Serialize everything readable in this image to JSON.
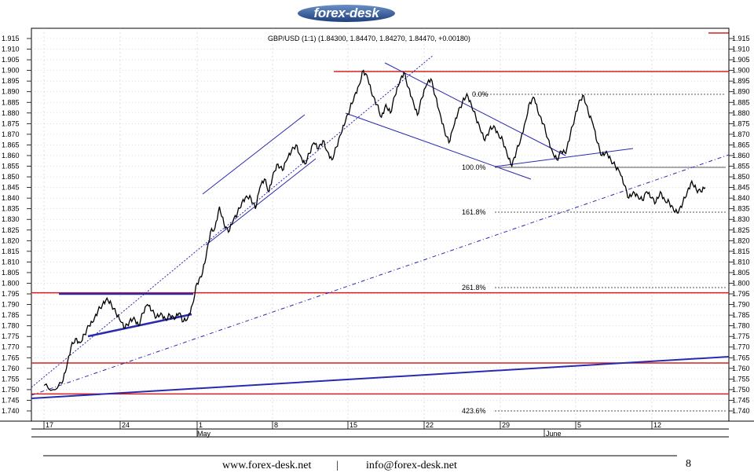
{
  "header": {
    "logo_text": "forex-desk"
  },
  "chart_data": {
    "type": "line",
    "title": "GBP/USD (1:1) (1.84300, 1.84470, 1.84270, 1.84470, +0.00180)",
    "ylim": [
      1.74,
      1.915
    ],
    "y_ticks": [
      "1.915",
      "1.910",
      "1.905",
      "1.900",
      "1.895",
      "1.890",
      "1.885",
      "1.880",
      "1.875",
      "1.870",
      "1.865",
      "1.860",
      "1.855",
      "1.850",
      "1.845",
      "1.840",
      "1.835",
      "1.830",
      "1.825",
      "1.820",
      "1.815",
      "1.810",
      "1.805",
      "1.800",
      "1.795",
      "1.790",
      "1.785",
      "1.780",
      "1.775",
      "1.770",
      "1.765",
      "1.760",
      "1.755",
      "1.750",
      "1.745",
      "1.740"
    ],
    "x_ticks": [
      "17",
      "24",
      "1",
      "8",
      "15",
      "22",
      "29",
      "5",
      "12"
    ],
    "month_labels": [
      "May",
      "June"
    ],
    "grid": true,
    "series": [
      {
        "values": [
          [
            0,
            1.752
          ],
          [
            2,
            1.75
          ],
          [
            4,
            1.753
          ],
          [
            5,
            1.76
          ],
          [
            6,
            1.77
          ],
          [
            7,
            1.774
          ],
          [
            8,
            1.772
          ],
          [
            9,
            1.776
          ],
          [
            10,
            1.78
          ],
          [
            11,
            1.782
          ],
          [
            12,
            1.787
          ],
          [
            13,
            1.79
          ],
          [
            14,
            1.793
          ],
          [
            15,
            1.79
          ],
          [
            16,
            1.786
          ],
          [
            17,
            1.782
          ],
          [
            18,
            1.779
          ],
          [
            19,
            1.782
          ],
          [
            20,
            1.784
          ],
          [
            21,
            1.78
          ],
          [
            22,
            1.786
          ],
          [
            23,
            1.79
          ],
          [
            24,
            1.787
          ],
          [
            25,
            1.784
          ],
          [
            26,
            1.786
          ],
          [
            27,
            1.783
          ],
          [
            28,
            1.785
          ],
          [
            29,
            1.783
          ],
          [
            30,
            1.786
          ],
          [
            31,
            1.782
          ],
          [
            32,
            1.784
          ],
          [
            33,
            1.79
          ],
          [
            34,
            1.8
          ],
          [
            35,
            1.803
          ],
          [
            36,
            1.812
          ],
          [
            37,
            1.824
          ],
          [
            38,
            1.826
          ],
          [
            39,
            1.836
          ],
          [
            40,
            1.828
          ],
          [
            41,
            1.824
          ],
          [
            42,
            1.829
          ],
          [
            43,
            1.833
          ],
          [
            44,
            1.838
          ],
          [
            45,
            1.841
          ],
          [
            46,
            1.84
          ],
          [
            47,
            1.835
          ],
          [
            48,
            1.845
          ],
          [
            49,
            1.849
          ],
          [
            50,
            1.843
          ],
          [
            51,
            1.852
          ],
          [
            52,
            1.856
          ],
          [
            53,
            1.853
          ],
          [
            54,
            1.858
          ],
          [
            55,
            1.862
          ],
          [
            56,
            1.865
          ],
          [
            57,
            1.86
          ],
          [
            58,
            1.856
          ],
          [
            59,
            1.861
          ],
          [
            60,
            1.866
          ],
          [
            61,
            1.863
          ],
          [
            62,
            1.867
          ],
          [
            63,
            1.862
          ],
          [
            64,
            1.858
          ],
          [
            65,
            1.864
          ],
          [
            66,
            1.87
          ],
          [
            67,
            1.876
          ],
          [
            68,
            1.882
          ],
          [
            69,
            1.888
          ],
          [
            70,
            1.893
          ],
          [
            71,
            1.9
          ],
          [
            72,
            1.896
          ],
          [
            73,
            1.888
          ],
          [
            74,
            1.884
          ],
          [
            75,
            1.878
          ],
          [
            76,
            1.884
          ],
          [
            77,
            1.88
          ],
          [
            78,
            1.888
          ],
          [
            79,
            1.894
          ],
          [
            80,
            1.899
          ],
          [
            81,
            1.892
          ],
          [
            82,
            1.886
          ],
          [
            83,
            1.879
          ],
          [
            84,
            1.887
          ],
          [
            85,
            1.893
          ],
          [
            86,
            1.896
          ],
          [
            87,
            1.888
          ],
          [
            88,
            1.88
          ],
          [
            89,
            1.872
          ],
          [
            90,
            1.866
          ],
          [
            91,
            1.873
          ],
          [
            92,
            1.88
          ],
          [
            93,
            1.885
          ],
          [
            94,
            1.889
          ],
          [
            95,
            1.884
          ],
          [
            96,
            1.878
          ],
          [
            97,
            1.872
          ],
          [
            98,
            1.867
          ],
          [
            99,
            1.872
          ],
          [
            100,
            1.874
          ],
          [
            101,
            1.87
          ],
          [
            102,
            1.867
          ],
          [
            103,
            1.86
          ],
          [
            104,
            1.855
          ],
          [
            105,
            1.862
          ],
          [
            106,
            1.868
          ],
          [
            107,
            1.876
          ],
          [
            108,
            1.885
          ],
          [
            109,
            1.887
          ],
          [
            110,
            1.879
          ],
          [
            111,
            1.875
          ],
          [
            112,
            1.868
          ],
          [
            113,
            1.862
          ],
          [
            114,
            1.858
          ],
          [
            115,
            1.862
          ],
          [
            116,
            1.861
          ],
          [
            117,
            1.87
          ],
          [
            118,
            1.878
          ],
          [
            119,
            1.886
          ],
          [
            120,
            1.888
          ],
          [
            121,
            1.88
          ],
          [
            122,
            1.875
          ],
          [
            123,
            1.866
          ],
          [
            124,
            1.86
          ],
          [
            125,
            1.862
          ],
          [
            126,
            1.858
          ],
          [
            127,
            1.855
          ],
          [
            128,
            1.852
          ],
          [
            129,
            1.846
          ],
          [
            130,
            1.84
          ],
          [
            131,
            1.843
          ],
          [
            132,
            1.841
          ],
          [
            133,
            1.839
          ],
          [
            134,
            1.843
          ],
          [
            135,
            1.84
          ],
          [
            136,
            1.838
          ],
          [
            137,
            1.843
          ],
          [
            138,
            1.839
          ],
          [
            139,
            1.838
          ],
          [
            140,
            1.834
          ],
          [
            141,
            1.833
          ],
          [
            142,
            1.838
          ],
          [
            143,
            1.843
          ],
          [
            144,
            1.848
          ],
          [
            145,
            1.844
          ],
          [
            146,
            1.843
          ],
          [
            147,
            1.845
          ]
        ]
      }
    ],
    "fibonacci_levels": [
      "0.0%",
      "100.0%",
      "161.8%",
      "261.8%",
      "423.6%"
    ],
    "horizontal_levels": [
      1.8995,
      1.7955,
      1.7625,
      1.748
    ]
  },
  "footer": {
    "website": "www.forex-desk.net",
    "separator": "|",
    "email": "info@forex-desk.net",
    "page_number": "8"
  },
  "colors": {
    "logo_bg": "#1f3f7a",
    "resistance": "#d62020",
    "trendline": "#2a2ab0",
    "price": "#000000",
    "grid": "#bdbdbd"
  }
}
